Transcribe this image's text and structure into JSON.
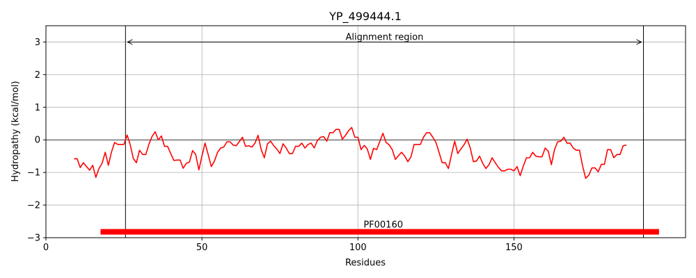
{
  "chart_data": {
    "type": "line",
    "title": "YP_499444.1",
    "xlabel": "Residues",
    "ylabel": "Hydropathy (kcal/mol)",
    "xlim": [
      0,
      205
    ],
    "ylim": [
      -3,
      3.5
    ],
    "xticks": [
      0,
      50,
      100,
      150
    ],
    "yticks": [
      -3,
      -2,
      -1,
      0,
      1,
      2,
      3
    ],
    "grid": true,
    "line_color": "#ff0000",
    "series": [
      {
        "x": [
          9,
          10,
          11,
          12,
          13,
          14,
          15,
          16,
          17,
          18,
          19,
          20,
          21,
          22,
          23,
          24,
          25,
          26,
          27,
          28,
          29,
          30,
          31,
          32,
          33,
          34,
          35,
          36,
          37,
          38,
          39,
          40,
          41,
          42,
          43,
          44,
          45,
          46,
          47,
          48,
          49,
          50,
          51,
          52,
          53,
          54,
          55,
          56,
          57,
          58,
          59,
          60,
          61,
          62,
          63,
          64,
          65,
          66,
          67,
          68,
          69,
          70,
          71,
          72,
          73,
          74,
          75,
          76,
          77,
          78,
          79,
          80,
          81,
          82,
          83,
          84,
          85,
          86,
          87,
          88,
          89,
          90,
          91,
          92,
          93,
          94,
          95,
          96,
          97,
          98,
          99,
          100,
          101,
          102,
          103,
          104,
          105,
          106,
          107,
          108,
          109,
          110,
          111,
          112,
          113,
          114,
          115,
          116,
          117,
          118,
          119,
          120,
          121,
          122,
          123,
          124,
          125,
          126,
          127,
          128,
          129,
          130,
          131,
          132,
          133,
          134,
          135,
          136,
          137,
          138,
          139,
          140,
          141,
          142,
          143,
          144,
          145,
          146,
          147,
          148,
          149,
          150,
          151,
          152,
          153,
          154,
          155,
          156,
          157,
          158,
          159,
          160,
          161,
          162,
          163,
          164,
          165,
          166,
          167,
          168,
          169,
          170,
          171,
          172,
          173,
          174,
          175,
          176,
          177,
          178,
          179,
          180,
          181,
          182,
          183,
          184,
          185,
          186
        ],
        "y": [
          -0.58,
          -0.58,
          -0.85,
          -0.7,
          -0.82,
          -0.93,
          -0.78,
          -1.15,
          -0.88,
          -0.72,
          -0.38,
          -0.78,
          -0.38,
          -0.08,
          -0.14,
          -0.14,
          -0.14,
          0.15,
          -0.14,
          -0.57,
          -0.7,
          -0.32,
          -0.45,
          -0.45,
          -0.14,
          0.1,
          0.25,
          0.0,
          0.12,
          -0.2,
          -0.2,
          -0.42,
          -0.63,
          -0.62,
          -0.62,
          -0.87,
          -0.72,
          -0.68,
          -0.33,
          -0.45,
          -0.92,
          -0.5,
          -0.1,
          -0.45,
          -0.82,
          -0.65,
          -0.38,
          -0.25,
          -0.22,
          -0.06,
          -0.06,
          -0.16,
          -0.18,
          -0.05,
          0.08,
          -0.2,
          -0.18,
          -0.22,
          -0.1,
          0.14,
          -0.3,
          -0.55,
          -0.12,
          -0.04,
          -0.18,
          -0.28,
          -0.42,
          -0.12,
          -0.25,
          -0.42,
          -0.42,
          -0.2,
          -0.2,
          -0.1,
          -0.25,
          -0.14,
          -0.1,
          -0.25,
          -0.02,
          0.08,
          0.1,
          -0.04,
          0.22,
          0.22,
          0.32,
          0.32,
          0.02,
          0.14,
          0.28,
          0.38,
          0.08,
          0.08,
          -0.3,
          -0.17,
          -0.28,
          -0.6,
          -0.26,
          -0.3,
          -0.05,
          0.2,
          -0.08,
          -0.15,
          -0.3,
          -0.6,
          -0.48,
          -0.38,
          -0.5,
          -0.67,
          -0.52,
          -0.14,
          -0.14,
          -0.14,
          0.08,
          0.22,
          0.22,
          0.08,
          -0.08,
          -0.38,
          -0.7,
          -0.7,
          -0.88,
          -0.45,
          -0.04,
          -0.42,
          -0.28,
          -0.15,
          0.02,
          -0.25,
          -0.67,
          -0.65,
          -0.5,
          -0.72,
          -0.88,
          -0.76,
          -0.55,
          -0.7,
          -0.84,
          -0.95,
          -0.95,
          -0.9,
          -0.9,
          -0.95,
          -0.82,
          -1.1,
          -0.8,
          -0.55,
          -0.55,
          -0.38,
          -0.5,
          -0.52,
          -0.52,
          -0.25,
          -0.35,
          -0.76,
          -0.3,
          -0.06,
          -0.04,
          0.08,
          -0.1,
          -0.1,
          -0.25,
          -0.32,
          -0.32,
          -0.8,
          -1.18,
          -1.08,
          -0.86,
          -0.86,
          -0.98,
          -0.75,
          -0.75,
          -0.3,
          -0.3,
          -0.55,
          -0.45,
          -0.45,
          -0.18,
          -0.16
        ]
      }
    ],
    "hline": 0,
    "vlines": [
      25.5,
      191.5
    ],
    "annotation": {
      "text": "Alignment region",
      "y": 3,
      "x_start": 25.5,
      "x_end": 191.5
    },
    "domain_bar": {
      "label": "PF00160",
      "start": 17.5,
      "end": 196.5,
      "y": -2.82,
      "color": "#ff0000"
    }
  }
}
